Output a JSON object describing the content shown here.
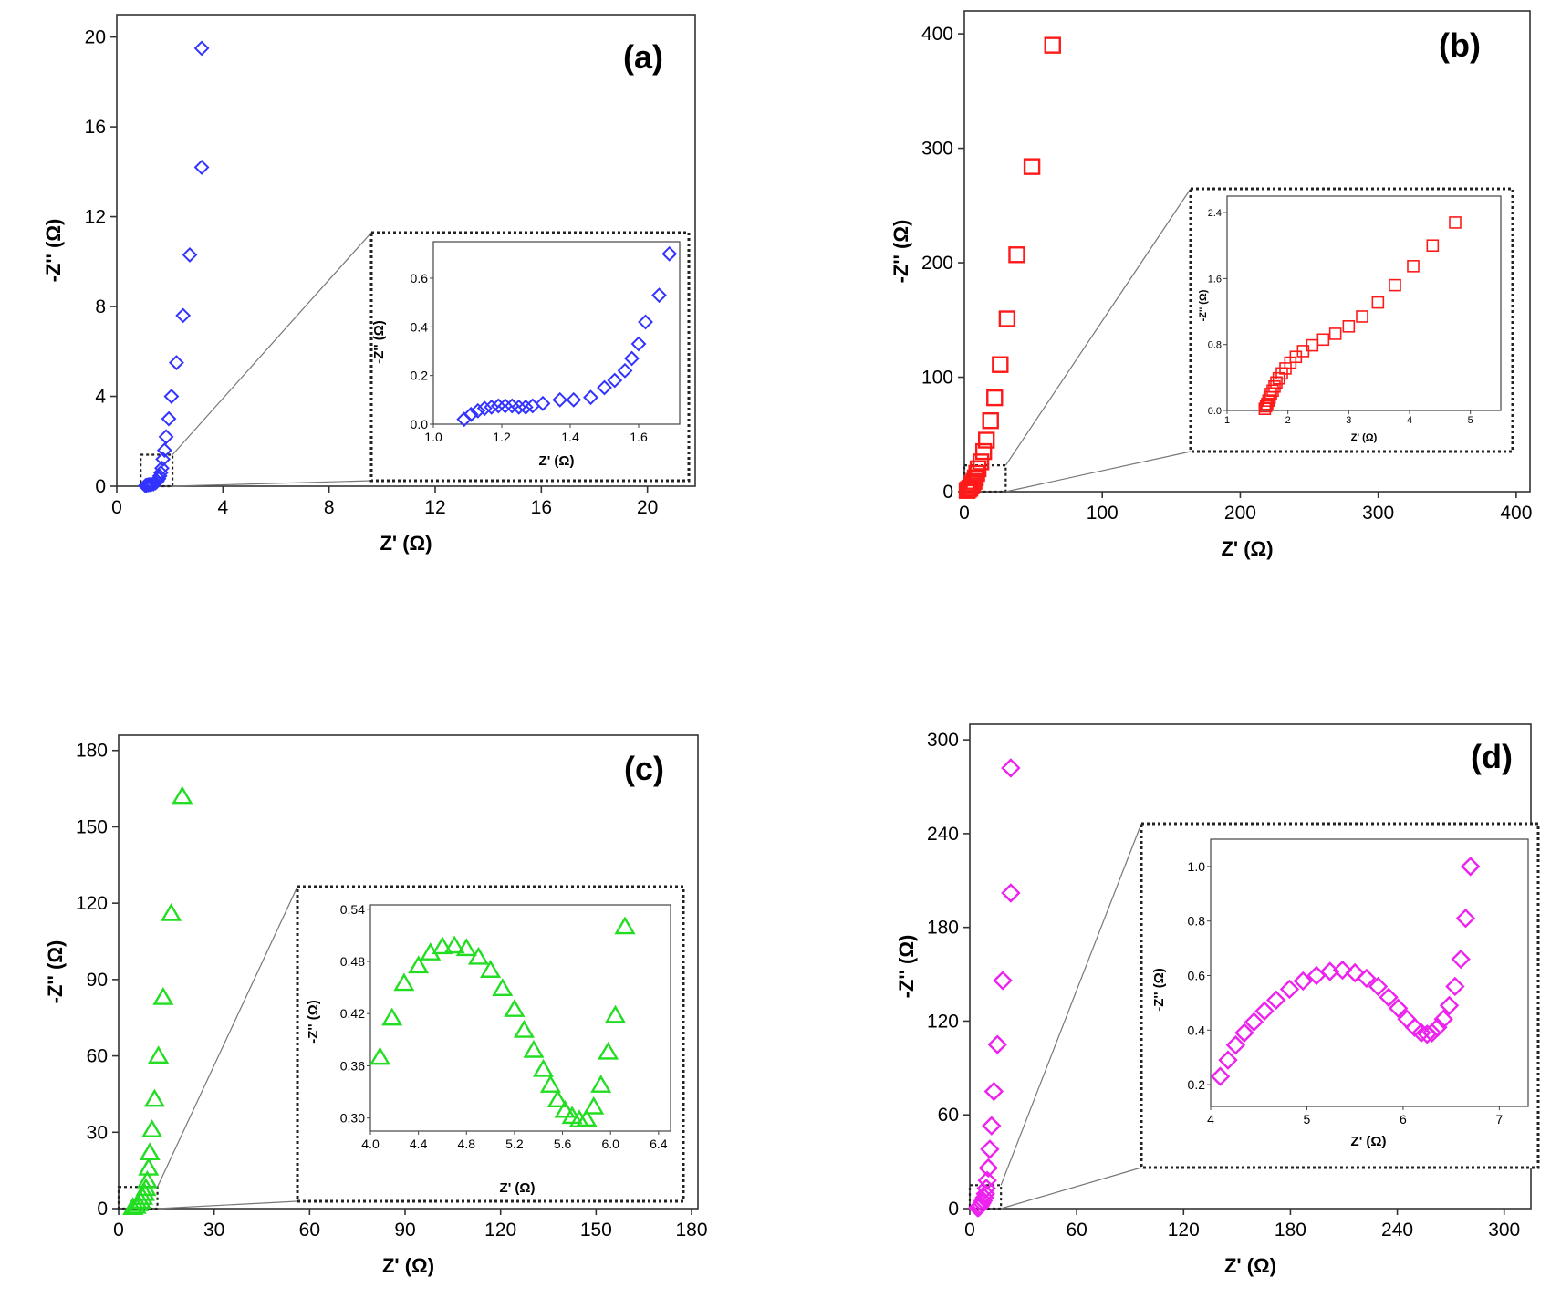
{
  "chart_data": [
    {
      "id": "a",
      "type": "scatter",
      "panel_label": "(a)",
      "xlabel": "Z' (Ω)",
      "ylabel": "-Z'' (Ω)",
      "xlim": [
        0,
        21.8
      ],
      "ylim": [
        0,
        21
      ],
      "xticks": [
        "0",
        "4",
        "8",
        "12",
        "16",
        "20"
      ],
      "yticks": [
        "0",
        "4",
        "8",
        "12",
        "16",
        "20"
      ],
      "color": "#3333ff",
      "marker": "diamond",
      "series": [
        {
          "name": "main",
          "x": [
            1.08,
            1.12,
            1.18,
            1.24,
            1.3,
            1.38,
            1.46,
            1.52,
            1.58,
            1.62,
            1.66,
            1.7,
            1.74,
            1.8,
            1.86,
            1.96,
            2.06,
            2.25,
            2.5,
            2.75,
            3.2
          ],
          "y": [
            0.02,
            0.04,
            0.06,
            0.07,
            0.08,
            0.1,
            0.15,
            0.22,
            0.33,
            0.45,
            0.6,
            0.8,
            1.2,
            1.6,
            2.2,
            3.0,
            4.0,
            5.5,
            7.6,
            10.3,
            14.2
          ]
        }
      ],
      "top_point": {
        "x": 3.2,
        "y": 19.5
      },
      "zoom_box": {
        "x": [
          0.9,
          2.1
        ],
        "y": [
          0,
          1.4
        ]
      },
      "inset": {
        "xlabel": "Z' (Ω)",
        "ylabel": "-Z'' (Ω)",
        "xlim": [
          1.0,
          1.72
        ],
        "ylim": [
          0,
          0.75
        ],
        "xticks": [
          "1.0",
          "1.2",
          "1.4",
          "1.6"
        ],
        "yticks": [
          "0.0",
          "0.2",
          "0.4",
          "0.6"
        ],
        "x": [
          1.09,
          1.11,
          1.13,
          1.15,
          1.17,
          1.19,
          1.21,
          1.23,
          1.25,
          1.27,
          1.29,
          1.32,
          1.37,
          1.41,
          1.46,
          1.5,
          1.53,
          1.56,
          1.58,
          1.6,
          1.62,
          1.66,
          1.69
        ],
        "y": [
          0.02,
          0.04,
          0.055,
          0.065,
          0.07,
          0.075,
          0.075,
          0.075,
          0.07,
          0.07,
          0.075,
          0.085,
          0.1,
          0.1,
          0.11,
          0.15,
          0.18,
          0.22,
          0.27,
          0.33,
          0.42,
          0.53,
          0.7
        ]
      }
    },
    {
      "id": "b",
      "type": "scatter",
      "panel_label": "(b)",
      "xlabel": "Z' (Ω)",
      "ylabel": "-Z'' (Ω)",
      "xlim": [
        0,
        410
      ],
      "ylim": [
        0,
        420
      ],
      "xticks": [
        "0",
        "100",
        "200",
        "300",
        "400"
      ],
      "yticks": [
        "0",
        "100",
        "200",
        "300",
        "400"
      ],
      "color": "#ff1a1a",
      "marker": "square",
      "series": [
        {
          "name": "main",
          "x": [
            2,
            3,
            4,
            5,
            6,
            7,
            8,
            9,
            10,
            12,
            14,
            16,
            19,
            22,
            26,
            31,
            38,
            49,
            64
          ],
          "y": [
            1,
            2,
            3,
            5,
            7,
            9,
            12,
            16,
            20,
            26,
            35,
            45,
            62,
            82,
            111,
            151,
            207,
            284,
            390
          ]
        }
      ],
      "zoom_box": {
        "x": [
          0,
          30
        ],
        "y": [
          0,
          23
        ]
      },
      "inset": {
        "xlabel": "Z' (Ω)",
        "ylabel": "-Z'' (Ω)",
        "xlim": [
          1,
          5.5
        ],
        "ylim": [
          0,
          2.6
        ],
        "xticks": [
          "1",
          "2",
          "3",
          "4",
          "5"
        ],
        "yticks": [
          "0.0",
          "0.8",
          "1.6",
          "2.4"
        ],
        "x": [
          1.62,
          1.64,
          1.66,
          1.68,
          1.7,
          1.72,
          1.75,
          1.78,
          1.81,
          1.85,
          1.9,
          1.96,
          2.04,
          2.13,
          2.25,
          2.4,
          2.58,
          2.78,
          3.0,
          3.22,
          3.48,
          3.76,
          4.06,
          4.38,
          4.75
        ],
        "y": [
          0.02,
          0.05,
          0.08,
          0.12,
          0.16,
          0.2,
          0.24,
          0.29,
          0.34,
          0.39,
          0.45,
          0.51,
          0.58,
          0.65,
          0.72,
          0.79,
          0.86,
          0.93,
          1.02,
          1.14,
          1.31,
          1.52,
          1.75,
          2.0,
          2.28
        ]
      }
    },
    {
      "id": "c",
      "type": "scatter",
      "panel_label": "(c)",
      "xlabel": "Z' (Ω)",
      "ylabel": "-Z'' (Ω)",
      "xlim": [
        0,
        182
      ],
      "ylim": [
        0,
        186
      ],
      "xticks": [
        "0",
        "30",
        "60",
        "90",
        "120",
        "150",
        "180"
      ],
      "yticks": [
        "0",
        "30",
        "60",
        "90",
        "120",
        "150",
        "180"
      ],
      "color": "#22dd22",
      "marker": "triangle",
      "series": [
        {
          "name": "main",
          "x": [
            4.5,
            5.5,
            6.2,
            7,
            7.6,
            8.2,
            8.6,
            9,
            9.4,
            9.8,
            10.5,
            11.3,
            12.5,
            14,
            16.5,
            20
          ],
          "y": [
            0.5,
            1,
            2,
            3,
            4.5,
            6,
            8,
            11,
            16,
            22,
            31,
            43,
            60,
            83,
            116,
            162
          ]
        }
      ],
      "zoom_box": {
        "x": [
          0,
          12.2
        ],
        "y": [
          0,
          8.5
        ]
      },
      "inset": {
        "xlabel": "Z' (Ω)",
        "ylabel": "-Z'' (Ω)",
        "xlim": [
          4.0,
          6.5
        ],
        "ylim": [
          0.285,
          0.545
        ],
        "xticks": [
          "4.0",
          "4.4",
          "4.8",
          "5.2",
          "5.6",
          "6.0",
          "6.4"
        ],
        "yticks": [
          "0.30",
          "0.36",
          "0.42",
          "0.48",
          "0.54"
        ],
        "x": [
          4.08,
          4.18,
          4.28,
          4.4,
          4.5,
          4.6,
          4.7,
          4.8,
          4.9,
          5.0,
          5.1,
          5.2,
          5.28,
          5.36,
          5.44,
          5.5,
          5.56,
          5.62,
          5.68,
          5.74,
          5.8,
          5.86,
          5.92,
          5.98,
          6.04,
          6.12
        ],
        "y": [
          0.37,
          0.415,
          0.455,
          0.475,
          0.49,
          0.497,
          0.498,
          0.495,
          0.485,
          0.47,
          0.449,
          0.425,
          0.401,
          0.378,
          0.356,
          0.338,
          0.321,
          0.309,
          0.302,
          0.298,
          0.299,
          0.313,
          0.338,
          0.376,
          0.418,
          0.52
        ]
      }
    },
    {
      "id": "d",
      "type": "scatter",
      "panel_label": "(d)",
      "xlabel": "Z' (Ω)",
      "ylabel": "-Z'' (Ω)",
      "xlim": [
        0,
        315
      ],
      "ylim": [
        0,
        310
      ],
      "xticks": [
        "0",
        "60",
        "120",
        "180",
        "240",
        "300"
      ],
      "yticks": [
        "0",
        "60",
        "120",
        "180",
        "240",
        "300"
      ],
      "color": "#ee22ee",
      "marker": "diamond",
      "series": [
        {
          "name": "main",
          "x": [
            4.5,
            5.2,
            6,
            6.8,
            7.5,
            8.2,
            8.8,
            9.3,
            9.8,
            10.4,
            11.2,
            12.2,
            13.5,
            15.5,
            18.5,
            23
          ],
          "y": [
            0.5,
            1,
            2,
            3.5,
            5,
            7,
            9.5,
            13,
            18,
            26,
            38,
            53,
            75,
            105,
            146,
            202
          ]
        }
      ],
      "top_point": {
        "x": 23,
        "y": 282
      },
      "zoom_box": {
        "x": [
          0,
          17.5
        ],
        "y": [
          0,
          15
        ]
      },
      "inset": {
        "xlabel": "Z' (Ω)",
        "ylabel": "-Z'' (Ω)",
        "xlim": [
          4.0,
          7.3
        ],
        "ylim": [
          0.12,
          1.1
        ],
        "xticks": [
          "4",
          "5",
          "6",
          "7"
        ],
        "yticks": [
          "0.2",
          "0.4",
          "0.6",
          "0.8",
          "1.0"
        ],
        "x": [
          4.1,
          4.18,
          4.26,
          4.35,
          4.45,
          4.56,
          4.68,
          4.82,
          4.96,
          5.1,
          5.24,
          5.37,
          5.5,
          5.62,
          5.74,
          5.85,
          5.95,
          6.04,
          6.12,
          6.19,
          6.25,
          6.3,
          6.36,
          6.42,
          6.48,
          6.54,
          6.6,
          6.65,
          6.7
        ],
        "y": [
          0.23,
          0.29,
          0.345,
          0.39,
          0.43,
          0.47,
          0.51,
          0.55,
          0.58,
          0.6,
          0.615,
          0.62,
          0.61,
          0.59,
          0.56,
          0.52,
          0.48,
          0.44,
          0.41,
          0.39,
          0.385,
          0.39,
          0.41,
          0.44,
          0.49,
          0.56,
          0.66,
          0.81,
          1.0
        ]
      }
    }
  ]
}
